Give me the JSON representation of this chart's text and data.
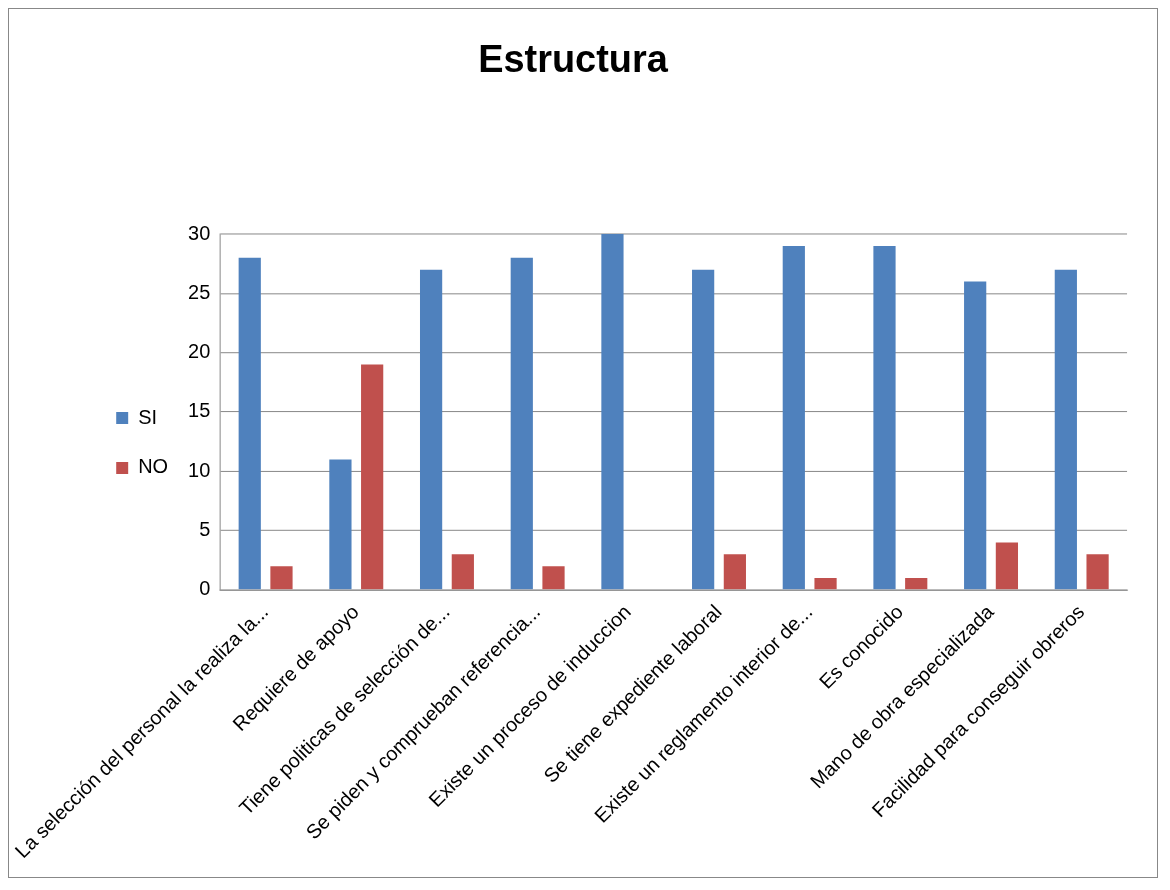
{
  "chart_data": {
    "type": "bar",
    "title": "Estructura",
    "categories": [
      "La selección del personal la realiza la...",
      "Requiere de apoyo",
      "Tiene politicas de selección de...",
      "Se piden y comprueban referencia...",
      "Existe un proceso de induccion",
      "Se tiene expediente laboral",
      "Existe un reglamento interior de...",
      "Es conocido",
      "Mano de obra especializada",
      "Facilidad para conseguir obreros"
    ],
    "series": [
      {
        "name": "SI",
        "color": "#4f81bd",
        "values": [
          28,
          11,
          27,
          28,
          30,
          27,
          29,
          29,
          26,
          27
        ]
      },
      {
        "name": "NO",
        "color": "#c0504d",
        "values": [
          2,
          19,
          3,
          2,
          0,
          3,
          1,
          1,
          4,
          3
        ]
      }
    ],
    "ylim": [
      0,
      30
    ],
    "yticks": [
      0,
      5,
      10,
      15,
      20,
      25,
      30
    ],
    "grid": "y",
    "legend": "left"
  }
}
